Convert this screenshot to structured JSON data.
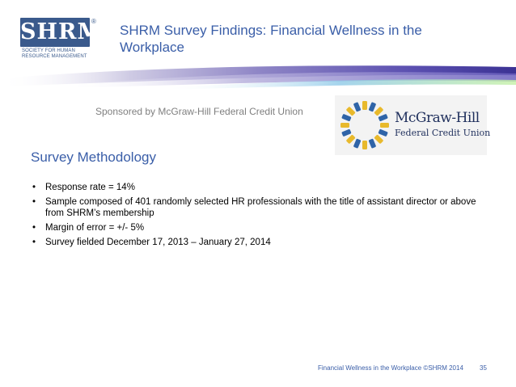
{
  "logo": {
    "letters": "SHRM",
    "registered": "®",
    "subtitle_line1": "Society for Human",
    "subtitle_line2": "Resource Management",
    "color": "#3a5a8c"
  },
  "title": {
    "line1": "SHRM Survey Findings: Financial Wellness in the",
    "line2": "Workplace",
    "color": "#3a5ea8"
  },
  "sponsor": {
    "text": "Sponsored by McGraw-Hill Federal Credit Union",
    "logo_name": "McGraw-Hill",
    "logo_sub": "Federal Credit Union",
    "logo_colors": [
      "#e8b92c",
      "#2f64a8"
    ]
  },
  "section": {
    "heading": "Survey Methodology",
    "bullets": [
      "Response rate = 14%",
      "Sample composed of 401 randomly selected HR professionals with the title of assistant director or above from SHRM’s membership",
      "Margin of error = +/- 5%",
      "Survey fielded December 17, 2013 – January 27, 2014"
    ]
  },
  "footer": {
    "text": "Financial Wellness in the Workplace ©SHRM 2014",
    "page": "35"
  }
}
